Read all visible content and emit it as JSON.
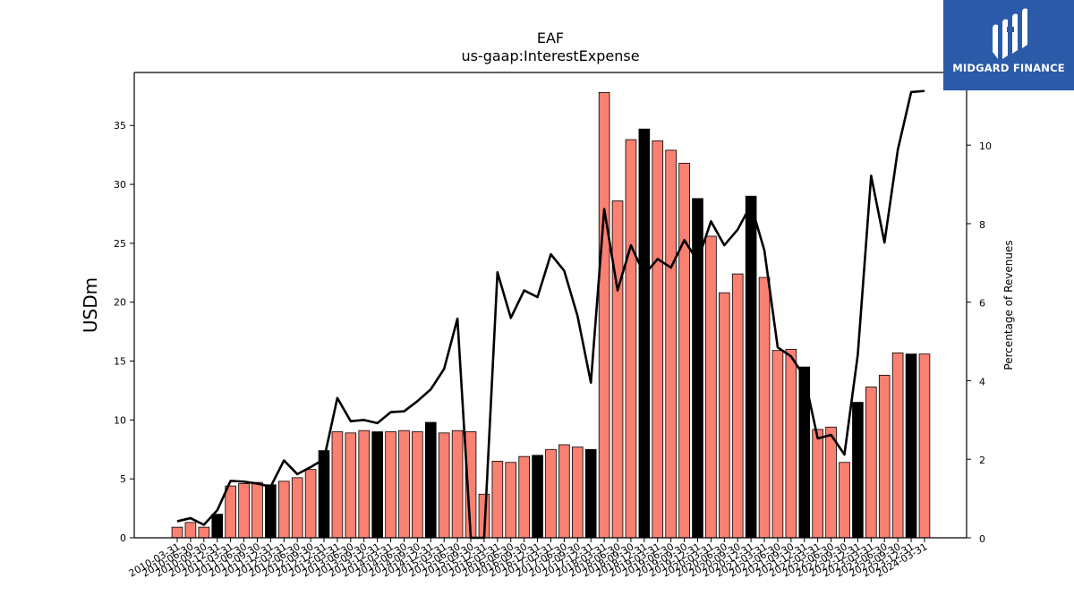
{
  "chart_data": {
    "type": "bar",
    "title": "EAF",
    "subtitle": "us-gaap:InterestExpense",
    "ylabel": "USDm",
    "y2label": "Percentage of Revenues",
    "ylim": [
      0,
      39.5
    ],
    "y2lim": [
      0,
      11.85
    ],
    "yticks": [
      0,
      5,
      10,
      15,
      20,
      25,
      30,
      35
    ],
    "y2ticks": [
      0,
      2,
      4,
      6,
      8,
      10
    ],
    "colors": {
      "bar": "#fa8072",
      "bar_highlight": "#000000",
      "line": "#000000"
    },
    "categories": [
      "2010-03-31",
      "2010-06-30",
      "2010-09-30",
      "2010-12-31",
      "2011-03-31",
      "2011-06-30",
      "2011-09-30",
      "2011-12-31",
      "2012-03-31",
      "2012-06-30",
      "2012-09-30",
      "2012-12-31",
      "2013-03-31",
      "2013-06-30",
      "2013-09-30",
      "2013-12-31",
      "2014-03-31",
      "2014-06-30",
      "2014-09-30",
      "2014-12-31",
      "2015-03-31",
      "2015-06-30",
      "2015-09-30",
      "2015-12-31",
      "2016-03-31",
      "2016-06-30",
      "2016-09-30",
      "2016-12-31",
      "2017-03-31",
      "2017-06-30",
      "2017-09-30",
      "2017-12-31",
      "2018-03-31",
      "2018-06-30",
      "2018-09-30",
      "2018-12-31",
      "2019-03-31",
      "2019-06-30",
      "2019-09-30",
      "2019-12-31",
      "2020-03-31",
      "2020-06-30",
      "2020-09-30",
      "2020-12-31",
      "2021-03-31",
      "2021-06-30",
      "2021-09-30",
      "2021-12-31",
      "2022-03-31",
      "2022-06-30",
      "2022-09-30",
      "2022-12-31",
      "2023-03-31",
      "2023-06-30",
      "2023-09-30",
      "2023-12-31",
      "2024-03-31"
    ],
    "xtick_labels": [
      "2010-03-31",
      "2010-06-30",
      "2010-09-30",
      "2010-12-31",
      "2011-03-31",
      "2011-06-30",
      "2011-09-30",
      "2011-12-31",
      "2012-03-31",
      "2012-06-30",
      "2012-09-30",
      "2012-12-31",
      "2013-03-31",
      "2013-06-30",
      "2013-09-30",
      "2013-12-31",
      "2014-03-31",
      "2014-06-30",
      "2014-09-30",
      "2014-12-31",
      "2015-03-31",
      "2015-06-30",
      "2015-09-30",
      "2015-12-31",
      "2016-03-31",
      "2016-06-30",
      "2016-09-30",
      "2016-12-31",
      "2017-03-31",
      "2017-06-30",
      "2017-09-30",
      "2017-12-31",
      "2018-03-31",
      "2018-06-30",
      "2018-09-30",
      "2018-12-31",
      "2019-03-31",
      "2019-06-30",
      "2019-09-30",
      "2019-12-31",
      "2020-03-31",
      "2020-06-30",
      "2020-09-30",
      "2020-12-31",
      "2021-03-31",
      "2021-06-30",
      "2021-09-30",
      "2021-12-31",
      "2022-03-31",
      "2022-06-30",
      "2022-09-30",
      "2022-12-31",
      "2023-03-31",
      "2023-06-30",
      "2023-09-30",
      "2023-12-31",
      "2024-03-31"
    ],
    "series": [
      {
        "type": "bar",
        "axis": "left",
        "values": [
          0.9,
          1.3,
          0.9,
          2.0,
          4.4,
          4.6,
          4.7,
          4.5,
          4.8,
          5.1,
          5.8,
          7.4,
          9.0,
          8.9,
          9.1,
          9.0,
          9.0,
          9.1,
          9.0,
          9.8,
          8.9,
          9.1,
          9.0,
          3.7,
          6.5,
          6.4,
          6.9,
          7.0,
          7.5,
          7.9,
          7.7,
          7.5,
          37.8,
          28.6,
          33.8,
          34.7,
          33.7,
          32.9,
          31.8,
          28.8,
          25.6,
          20.8,
          22.4,
          29.0,
          22.1,
          15.9,
          16.0,
          14.5,
          9.2,
          9.4,
          6.4,
          11.5,
          12.8,
          13.8,
          15.7,
          15.6,
          15.6
        ],
        "highlight": [
          false,
          false,
          false,
          true,
          false,
          false,
          false,
          true,
          false,
          false,
          false,
          true,
          false,
          false,
          false,
          true,
          false,
          false,
          false,
          true,
          false,
          false,
          false,
          false,
          false,
          false,
          false,
          true,
          false,
          false,
          false,
          true,
          false,
          false,
          false,
          true,
          false,
          false,
          false,
          true,
          false,
          false,
          false,
          true,
          false,
          false,
          false,
          true,
          false,
          false,
          false,
          true,
          false,
          false,
          false,
          true,
          false
        ]
      },
      {
        "type": "line",
        "axis": "right",
        "values": [
          0.42,
          0.5,
          0.33,
          0.7,
          1.45,
          1.43,
          1.38,
          1.3,
          1.97,
          1.62,
          1.8,
          2.0,
          3.56,
          2.97,
          3.0,
          2.92,
          3.2,
          3.22,
          3.48,
          3.78,
          4.3,
          5.58,
          0.0,
          0.0,
          6.76,
          5.6,
          6.3,
          6.13,
          7.22,
          6.8,
          5.65,
          3.95,
          8.37,
          6.3,
          7.45,
          6.7,
          7.1,
          6.88,
          7.58,
          7.05,
          8.06,
          7.45,
          7.85,
          8.48,
          7.32,
          4.85,
          4.62,
          4.1,
          2.53,
          2.62,
          2.12,
          4.66,
          9.22,
          7.52,
          9.88,
          11.35,
          11.38
        ]
      }
    ],
    "grid": false,
    "legend": "none"
  },
  "logo": {
    "text": "MIDGARD FINANCE",
    "background": "#2b5aa8"
  }
}
